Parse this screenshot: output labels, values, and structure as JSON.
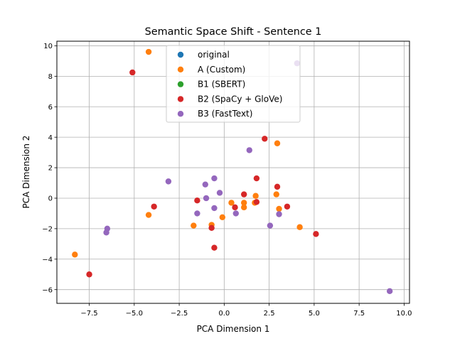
{
  "chart_data": {
    "type": "scatter",
    "title": "Semantic Space Shift - Sentence 1",
    "xlabel": "PCA Dimension 1",
    "ylabel": "PCA Dimension 2",
    "xlim": [
      -9.3,
      10.3
    ],
    "ylim": [
      -6.9,
      10.3
    ],
    "xticks": [
      -7.5,
      -5.0,
      -2.5,
      0.0,
      2.5,
      5.0,
      7.5,
      10.0
    ],
    "xtick_labels": [
      "−7.5",
      "−5.0",
      "−2.5",
      "0.0",
      "2.5",
      "5.0",
      "7.5",
      "10.0"
    ],
    "yticks": [
      -6,
      -4,
      -2,
      0,
      2,
      4,
      6,
      8,
      10
    ],
    "ytick_labels": [
      "−6",
      "−4",
      "−2",
      "0",
      "2",
      "4",
      "6",
      "8",
      "10"
    ],
    "grid": true,
    "legend_position": "top-center",
    "series": [
      {
        "name": "original",
        "color": "#1f77b4",
        "points": []
      },
      {
        "name": "A (Custom)",
        "color": "#ff7f0e",
        "points": [
          [
            -4.2,
            9.6
          ],
          [
            -8.3,
            -3.7
          ],
          [
            -4.2,
            -1.1
          ],
          [
            -1.7,
            -1.8
          ],
          [
            -0.7,
            -1.75
          ],
          [
            -0.1,
            -1.25
          ],
          [
            0.4,
            -0.3
          ],
          [
            1.1,
            -0.3
          ],
          [
            1.1,
            -0.6
          ],
          [
            1.7,
            -0.3
          ],
          [
            1.75,
            0.15
          ],
          [
            2.9,
            0.25
          ],
          [
            2.95,
            3.6
          ],
          [
            3.05,
            -0.7
          ],
          [
            4.2,
            -1.9
          ]
        ]
      },
      {
        "name": "B1 (SBERT)",
        "color": "#2ca02c",
        "points": []
      },
      {
        "name": "B2 (SpaCy + GloVe)",
        "color": "#d62728",
        "points": [
          [
            -5.1,
            8.25
          ],
          [
            -7.5,
            -5.0
          ],
          [
            -3.9,
            -0.55
          ],
          [
            -1.5,
            -0.15
          ],
          [
            -0.7,
            -1.95
          ],
          [
            -0.55,
            -3.25
          ],
          [
            0.6,
            -0.6
          ],
          [
            1.1,
            0.25
          ],
          [
            1.8,
            1.3
          ],
          [
            1.8,
            -0.25
          ],
          [
            2.25,
            3.9
          ],
          [
            2.95,
            0.75
          ],
          [
            3.5,
            -0.55
          ],
          [
            5.1,
            -2.35
          ]
        ]
      },
      {
        "name": "B3 (FastText)",
        "color": "#9467bd",
        "points": [
          [
            4.05,
            8.85
          ],
          [
            -6.5,
            -2.0
          ],
          [
            -6.55,
            -2.25
          ],
          [
            -3.1,
            1.1
          ],
          [
            -1.05,
            0.9
          ],
          [
            -1.0,
            0.0
          ],
          [
            -1.5,
            -1.0
          ],
          [
            -0.55,
            1.3
          ],
          [
            -0.55,
            -0.65
          ],
          [
            -0.25,
            0.35
          ],
          [
            0.65,
            -1.0
          ],
          [
            1.4,
            3.15
          ],
          [
            2.55,
            -1.8
          ],
          [
            3.05,
            -1.05
          ],
          [
            9.2,
            -6.1
          ]
        ]
      }
    ]
  }
}
